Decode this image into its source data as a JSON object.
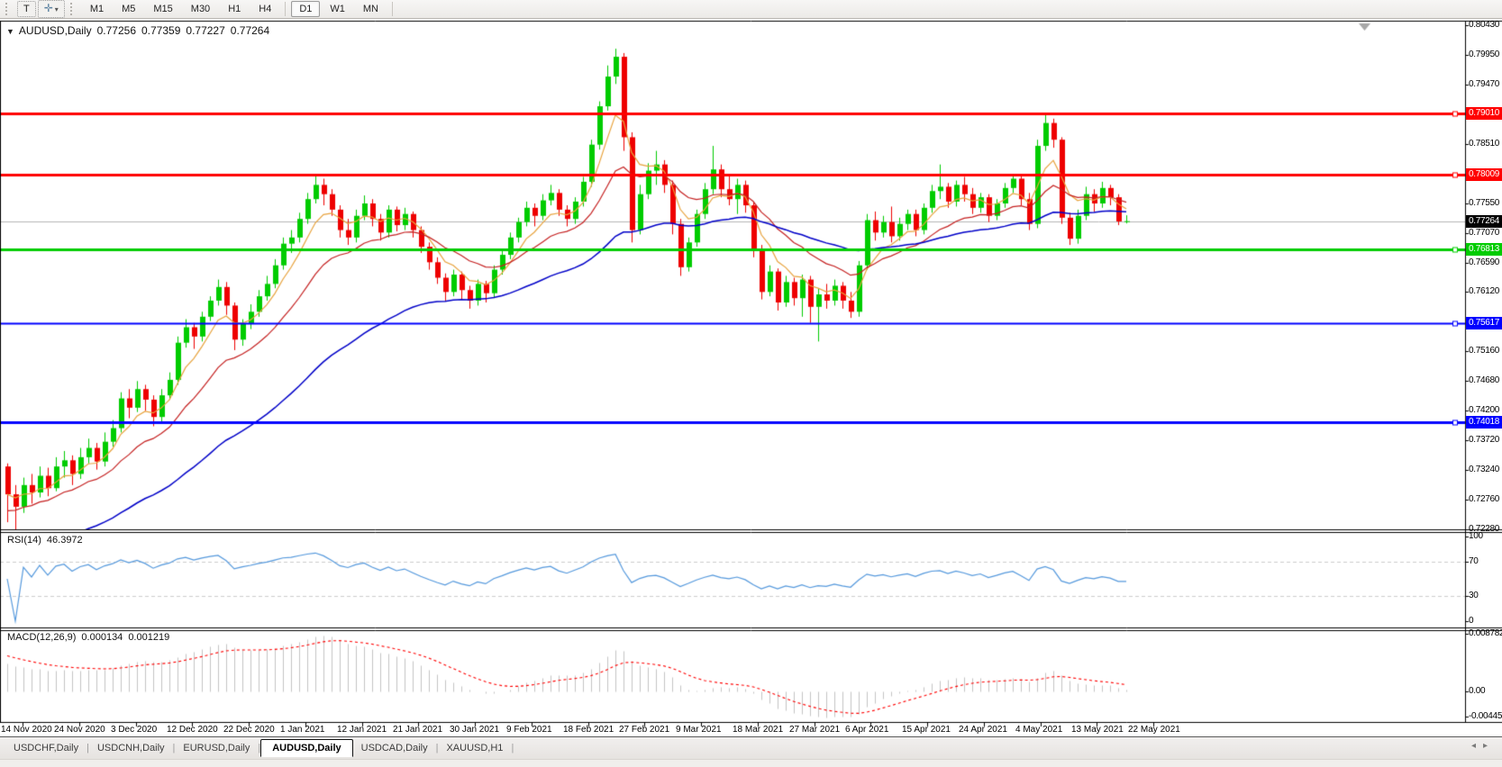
{
  "toolbar": {
    "tools": [
      {
        "name": "text-tool",
        "glyph": "T"
      },
      {
        "name": "cursor-tool",
        "glyph": "✛",
        "dropdown": "▾"
      }
    ],
    "timeframes": [
      {
        "label": "M1",
        "active": false
      },
      {
        "label": "M5",
        "active": false
      },
      {
        "label": "M15",
        "active": false
      },
      {
        "label": "M30",
        "active": false
      },
      {
        "label": "H1",
        "active": false
      },
      {
        "label": "H4",
        "active": false
      },
      {
        "label": "D1",
        "active": true
      },
      {
        "label": "W1",
        "active": false
      },
      {
        "label": "MN",
        "active": false
      }
    ]
  },
  "chart": {
    "title": {
      "dropdown_glyph": "▼",
      "symbol": "AUDUSD,Daily",
      "open": "0.77256",
      "high": "0.77359",
      "low": "0.77227",
      "close": "0.77264"
    },
    "price_axis_ticks": [
      "0.80430",
      "0.79950",
      "0.79470",
      "0.78510",
      "0.77550",
      "0.77070",
      "0.76590",
      "0.76120",
      "0.75160",
      "0.74680",
      "0.74200",
      "0.73720",
      "0.73240",
      "0.72760",
      "0.72280"
    ],
    "hlines": [
      {
        "label": "0.79010",
        "value": 0.7901,
        "color": "#FF0000",
        "width": 3
      },
      {
        "label": "0.78009",
        "value": 0.78009,
        "color": "#FF0000",
        "width": 3
      },
      {
        "label": "0.76813",
        "value": 0.76813,
        "color": "#00CC00",
        "width": 3
      },
      {
        "label": "0.75617",
        "value": 0.75617,
        "color": "#0000FF",
        "width": 2
      },
      {
        "label": "0.74018",
        "value": 0.74018,
        "color": "#0000FF",
        "width": 3
      }
    ],
    "current_price": {
      "label": "0.77264",
      "value": 0.77264,
      "bg": "#000000"
    },
    "colors": {
      "bull": "#00CC00",
      "bear": "#EE0000",
      "ma_fast": "#E8A33D",
      "ma_mid": "#C52020",
      "ma_slow": "#0000C8",
      "rsi": "#5599DD",
      "macd_hist": "#C4C4C4",
      "macd_signal": "#FF0000",
      "price_line": "#B6B6B6"
    }
  },
  "rsi": {
    "name": "RSI(14)",
    "value": "46.3972",
    "levels": [
      {
        "label": "100",
        "value": 100
      },
      {
        "label": "70",
        "value": 70
      },
      {
        "label": "30",
        "value": 30
      },
      {
        "label": "0",
        "value": 0
      }
    ]
  },
  "macd": {
    "name": "MACD(12,26,9)",
    "main_value": "0.000134",
    "signal_value": "0.001219",
    "scale": [
      {
        "label": "0.008782"
      },
      {
        "label": "0.00"
      },
      {
        "label": "-0.00445"
      }
    ]
  },
  "tabs": [
    {
      "label": "USDCHF,Daily",
      "active": false
    },
    {
      "label": "USDCNH,Daily",
      "active": false
    },
    {
      "label": "EURUSD,Daily",
      "active": false
    },
    {
      "label": "AUDUSD,Daily",
      "active": true
    },
    {
      "label": "USDCAD,Daily",
      "active": false
    },
    {
      "label": "XAUUSD,H1",
      "active": false
    }
  ],
  "tab_scroll": {
    "left": "◂",
    "right": "▸"
  },
  "chart_data": {
    "type": "candlestick",
    "symbol": "AUDUSD",
    "timeframe": "Daily",
    "y_range": [
      0.7228,
      0.8043
    ],
    "x_labels": [
      "14 Nov 2020",
      "24 Nov 2020",
      "3 Dec 2020",
      "12 Dec 2020",
      "22 Dec 2020",
      "1 Jan 2021",
      "12 Jan 2021",
      "21 Jan 2021",
      "30 Jan 2021",
      "9 Feb 2021",
      "18 Feb 2021",
      "27 Feb 2021",
      "9 Mar 2021",
      "18 Mar 2021",
      "27 Mar 2021",
      "6 Apr 2021",
      "15 Apr 2021",
      "24 Apr 2021",
      "4 May 2021",
      "13 May 2021",
      "22 May 2021"
    ],
    "ohlc": [
      [
        0.733,
        0.7335,
        0.724,
        0.7285
      ],
      [
        0.7285,
        0.73,
        0.7228,
        0.7265
      ],
      [
        0.7265,
        0.7312,
        0.7255,
        0.73
      ],
      [
        0.73,
        0.7318,
        0.727,
        0.7288
      ],
      [
        0.7288,
        0.733,
        0.728,
        0.7315
      ],
      [
        0.7315,
        0.7328,
        0.7282,
        0.7295
      ],
      [
        0.7295,
        0.7345,
        0.729,
        0.733
      ],
      [
        0.733,
        0.7355,
        0.7312,
        0.734
      ],
      [
        0.734,
        0.7348,
        0.73,
        0.7318
      ],
      [
        0.7318,
        0.736,
        0.731,
        0.7345
      ],
      [
        0.7345,
        0.7375,
        0.7335,
        0.736
      ],
      [
        0.736,
        0.7368,
        0.7325,
        0.7338
      ],
      [
        0.7338,
        0.7385,
        0.733,
        0.737
      ],
      [
        0.737,
        0.7405,
        0.7362,
        0.7392
      ],
      [
        0.7392,
        0.745,
        0.7385,
        0.744
      ],
      [
        0.744,
        0.7455,
        0.7408,
        0.7425
      ],
      [
        0.7425,
        0.7468,
        0.7418,
        0.7455
      ],
      [
        0.7455,
        0.7462,
        0.742,
        0.7438
      ],
      [
        0.7438,
        0.7445,
        0.7395,
        0.741
      ],
      [
        0.741,
        0.7455,
        0.7402,
        0.7445
      ],
      [
        0.7445,
        0.7482,
        0.7438,
        0.747
      ],
      [
        0.747,
        0.754,
        0.7462,
        0.753
      ],
      [
        0.753,
        0.7568,
        0.7522,
        0.7555
      ],
      [
        0.7555,
        0.7562,
        0.752,
        0.754
      ],
      [
        0.754,
        0.758,
        0.7532,
        0.7572
      ],
      [
        0.7572,
        0.7605,
        0.7565,
        0.7598
      ],
      [
        0.7598,
        0.7632,
        0.759,
        0.762
      ],
      [
        0.762,
        0.7628,
        0.7575,
        0.759
      ],
      [
        0.759,
        0.7595,
        0.7518,
        0.7535
      ],
      [
        0.7535,
        0.7568,
        0.7525,
        0.756
      ],
      [
        0.756,
        0.7592,
        0.7552,
        0.758
      ],
      [
        0.758,
        0.7615,
        0.7572,
        0.7605
      ],
      [
        0.7605,
        0.7638,
        0.7598,
        0.7625
      ],
      [
        0.7625,
        0.7665,
        0.7618,
        0.7655
      ],
      [
        0.7655,
        0.77,
        0.7648,
        0.769
      ],
      [
        0.769,
        0.7712,
        0.7675,
        0.77
      ],
      [
        0.77,
        0.774,
        0.7692,
        0.773
      ],
      [
        0.773,
        0.7772,
        0.7722,
        0.7762
      ],
      [
        0.7762,
        0.78,
        0.7755,
        0.7785
      ],
      [
        0.7785,
        0.7795,
        0.7752,
        0.777
      ],
      [
        0.777,
        0.7778,
        0.7735,
        0.7745
      ],
      [
        0.7745,
        0.7752,
        0.77,
        0.7712
      ],
      [
        0.7712,
        0.773,
        0.7688,
        0.77
      ],
      [
        0.77,
        0.7745,
        0.7692,
        0.7735
      ],
      [
        0.7735,
        0.7768,
        0.7728,
        0.7755
      ],
      [
        0.7755,
        0.7762,
        0.7718,
        0.773
      ],
      [
        0.773,
        0.7738,
        0.7695,
        0.7708
      ],
      [
        0.7708,
        0.7752,
        0.77,
        0.7745
      ],
      [
        0.7745,
        0.775,
        0.771,
        0.772
      ],
      [
        0.772,
        0.7748,
        0.7712,
        0.7738
      ],
      [
        0.7738,
        0.7742,
        0.77,
        0.7712
      ],
      [
        0.7712,
        0.7718,
        0.7675,
        0.7685
      ],
      [
        0.7685,
        0.7692,
        0.7648,
        0.766
      ],
      [
        0.766,
        0.7668,
        0.7625,
        0.7635
      ],
      [
        0.7635,
        0.7642,
        0.7598,
        0.7612
      ],
      [
        0.7612,
        0.7648,
        0.7605,
        0.764
      ],
      [
        0.764,
        0.7645,
        0.76,
        0.7615
      ],
      [
        0.7615,
        0.7622,
        0.7585,
        0.7598
      ],
      [
        0.7598,
        0.7632,
        0.759,
        0.7625
      ],
      [
        0.7625,
        0.763,
        0.7595,
        0.761
      ],
      [
        0.761,
        0.7655,
        0.7602,
        0.7648
      ],
      [
        0.7648,
        0.768,
        0.764,
        0.7672
      ],
      [
        0.7672,
        0.7708,
        0.7665,
        0.77
      ],
      [
        0.77,
        0.7732,
        0.7692,
        0.7725
      ],
      [
        0.7725,
        0.7758,
        0.7718,
        0.7748
      ],
      [
        0.7748,
        0.7755,
        0.7718,
        0.7735
      ],
      [
        0.7735,
        0.777,
        0.7728,
        0.776
      ],
      [
        0.776,
        0.7785,
        0.7752,
        0.7772
      ],
      [
        0.7772,
        0.7778,
        0.7735,
        0.7745
      ],
      [
        0.7745,
        0.7752,
        0.7718,
        0.773
      ],
      [
        0.773,
        0.7765,
        0.7722,
        0.7758
      ],
      [
        0.7758,
        0.7798,
        0.775,
        0.779
      ],
      [
        0.779,
        0.7858,
        0.7782,
        0.785
      ],
      [
        0.785,
        0.792,
        0.7842,
        0.7912
      ],
      [
        0.7912,
        0.7978,
        0.7905,
        0.796
      ],
      [
        0.796,
        0.8005,
        0.7948,
        0.7992
      ],
      [
        0.7992,
        0.7998,
        0.784,
        0.7862
      ],
      [
        0.7862,
        0.787,
        0.7692,
        0.7712
      ],
      [
        0.7712,
        0.7785,
        0.7705,
        0.777
      ],
      [
        0.777,
        0.782,
        0.7762,
        0.7808
      ],
      [
        0.7808,
        0.784,
        0.7785,
        0.7818
      ],
      [
        0.7818,
        0.7825,
        0.7772,
        0.7785
      ],
      [
        0.7785,
        0.7792,
        0.7705,
        0.7722
      ],
      [
        0.7722,
        0.773,
        0.7638,
        0.7652
      ],
      [
        0.7652,
        0.77,
        0.7645,
        0.7692
      ],
      [
        0.7692,
        0.7745,
        0.7685,
        0.7738
      ],
      [
        0.7738,
        0.7788,
        0.773,
        0.7778
      ],
      [
        0.7778,
        0.7848,
        0.777,
        0.781
      ],
      [
        0.781,
        0.7818,
        0.7765,
        0.7778
      ],
      [
        0.7778,
        0.78,
        0.7752,
        0.7762
      ],
      [
        0.7762,
        0.7795,
        0.7738,
        0.7785
      ],
      [
        0.7785,
        0.7792,
        0.774,
        0.7752
      ],
      [
        0.7752,
        0.7758,
        0.7668,
        0.768
      ],
      [
        0.768,
        0.7688,
        0.76,
        0.7612
      ],
      [
        0.7612,
        0.7655,
        0.7605,
        0.7645
      ],
      [
        0.7645,
        0.765,
        0.7582,
        0.7595
      ],
      [
        0.7595,
        0.7638,
        0.7588,
        0.7628
      ],
      [
        0.7628,
        0.7635,
        0.759,
        0.7602
      ],
      [
        0.7602,
        0.764,
        0.7572,
        0.7632
      ],
      [
        0.7632,
        0.7638,
        0.7562,
        0.7588
      ],
      [
        0.7588,
        0.7618,
        0.7532,
        0.7608
      ],
      [
        0.7608,
        0.7625,
        0.7585,
        0.7598
      ],
      [
        0.7598,
        0.7632,
        0.759,
        0.7622
      ],
      [
        0.7622,
        0.7628,
        0.7585,
        0.7598
      ],
      [
        0.7598,
        0.7612,
        0.757,
        0.758
      ],
      [
        0.758,
        0.7662,
        0.7572,
        0.7655
      ],
      [
        0.7655,
        0.7738,
        0.7648,
        0.7728
      ],
      [
        0.7728,
        0.7742,
        0.7695,
        0.7708
      ],
      [
        0.7708,
        0.7735,
        0.77,
        0.7725
      ],
      [
        0.7725,
        0.775,
        0.7692,
        0.7702
      ],
      [
        0.7702,
        0.7732,
        0.7695,
        0.7722
      ],
      [
        0.7722,
        0.7745,
        0.7712,
        0.7738
      ],
      [
        0.7738,
        0.7745,
        0.7702,
        0.7712
      ],
      [
        0.7712,
        0.7755,
        0.7705,
        0.7748
      ],
      [
        0.7748,
        0.7785,
        0.774,
        0.7775
      ],
      [
        0.7775,
        0.7818,
        0.7762,
        0.7782
      ],
      [
        0.7782,
        0.7788,
        0.7748,
        0.7758
      ],
      [
        0.7758,
        0.7792,
        0.775,
        0.7785
      ],
      [
        0.7785,
        0.7798,
        0.7758,
        0.777
      ],
      [
        0.777,
        0.778,
        0.7738,
        0.7748
      ],
      [
        0.7748,
        0.7772,
        0.774,
        0.7765
      ],
      [
        0.7765,
        0.777,
        0.7725,
        0.7735
      ],
      [
        0.7735,
        0.7762,
        0.7728,
        0.7755
      ],
      [
        0.7755,
        0.7788,
        0.7748,
        0.778
      ],
      [
        0.778,
        0.7802,
        0.7772,
        0.7795
      ],
      [
        0.7795,
        0.78,
        0.7752,
        0.7762
      ],
      [
        0.7762,
        0.7772,
        0.7712,
        0.7722
      ],
      [
        0.7722,
        0.7858,
        0.7715,
        0.7848
      ],
      [
        0.7848,
        0.79,
        0.784,
        0.7885
      ],
      [
        0.7885,
        0.7892,
        0.7845,
        0.7858
      ],
      [
        0.7858,
        0.7862,
        0.7722,
        0.7732
      ],
      [
        0.7732,
        0.774,
        0.7688,
        0.7698
      ],
      [
        0.7698,
        0.7745,
        0.769,
        0.7735
      ],
      [
        0.7735,
        0.7782,
        0.7728,
        0.777
      ],
      [
        0.777,
        0.7778,
        0.7742,
        0.7755
      ],
      [
        0.7755,
        0.779,
        0.7748,
        0.778
      ],
      [
        0.778,
        0.7785,
        0.7752,
        0.7765
      ],
      [
        0.7765,
        0.777,
        0.772,
        0.7726
      ],
      [
        0.77256,
        0.77359,
        0.77227,
        0.77264
      ]
    ]
  }
}
